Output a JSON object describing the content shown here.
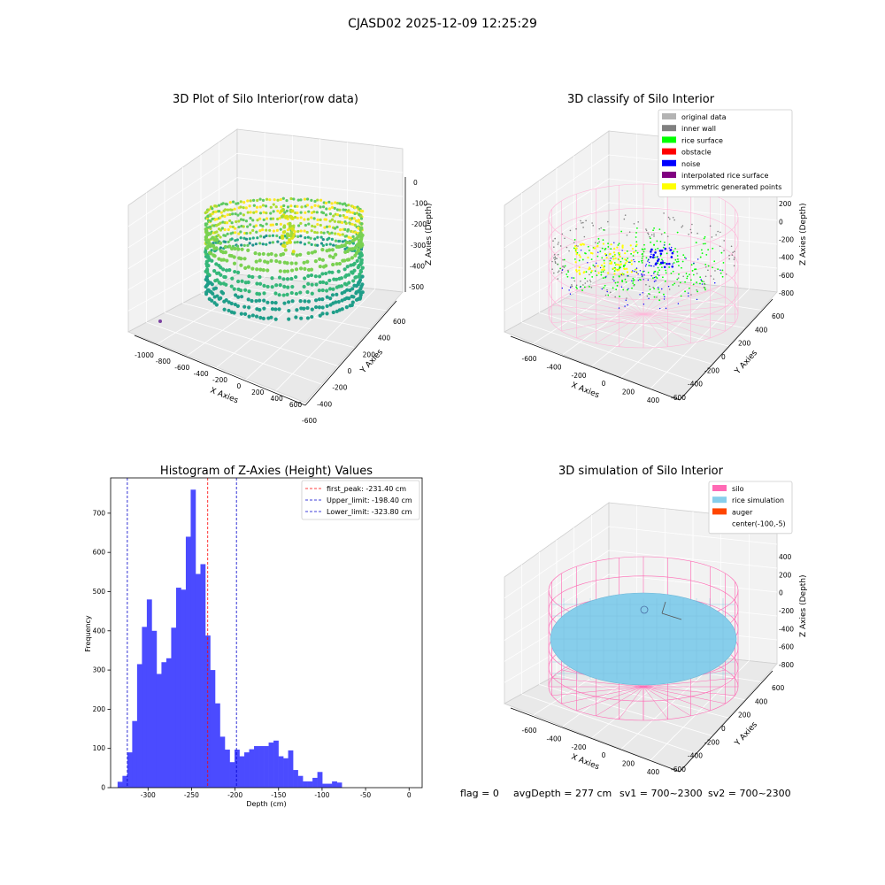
{
  "figure_title": "CJASD02 2025-12-09 12:25:29",
  "status_line": {
    "flag": "flag = 0",
    "avg_depth": "avgDepth = 277 cm",
    "sv1": "sv1 = 700~2300",
    "sv2": "sv2 = 700~2300"
  },
  "panels": {
    "raw": {
      "title": "3D Plot of Silo Interior(row data)",
      "xlabel": "X Axies",
      "ylabel": "Y Axies",
      "zlabel": "Z Axies (Depth)",
      "xticks": [
        "-1000",
        "-800",
        "-600",
        "-400",
        "-200",
        "0",
        "200",
        "400",
        "600"
      ],
      "yticks": [
        "600",
        "400",
        "200",
        "0",
        "-200",
        "-400",
        "-600"
      ],
      "zticks": [
        "0",
        "-100",
        "-200",
        "-300",
        "-400",
        "-500"
      ]
    },
    "classify": {
      "title": "3D classify of Silo Interior",
      "xlabel": "X Axies",
      "ylabel": "Y Axies",
      "zlabel": "Z Axies (Depth)",
      "xticks": [
        "-600",
        "-400",
        "-200",
        "0",
        "200",
        "400"
      ],
      "yticks": [
        "600",
        "400",
        "200",
        "0",
        "-200",
        "-400",
        "-600"
      ],
      "zticks": [
        "400",
        "200",
        "0",
        "-200",
        "-400",
        "-600",
        "-800"
      ],
      "legend": [
        {
          "label": "original data",
          "color": "#b3b3b3"
        },
        {
          "label": "inner wall",
          "color": "#808080"
        },
        {
          "label": "rice surface",
          "color": "#00ff00"
        },
        {
          "label": "obstacle",
          "color": "#ff0000"
        },
        {
          "label": "noise",
          "color": "#0000ff"
        },
        {
          "label": "interpolated rice surface",
          "color": "#800080"
        },
        {
          "label": "symmetric generated points",
          "color": "#ffff00"
        }
      ]
    },
    "simulation": {
      "title": "3D simulation of Silo Interior",
      "xlabel": "X Axies",
      "ylabel": "Y Axies",
      "zlabel": "Z Axies (Depth)",
      "xticks": [
        "-600",
        "-400",
        "-200",
        "0",
        "200",
        "400"
      ],
      "yticks": [
        "600",
        "400",
        "200",
        "0",
        "-200",
        "-400",
        "-600"
      ],
      "zticks": [
        "400",
        "200",
        "0",
        "-200",
        "-400",
        "-600",
        "-800"
      ],
      "legend": [
        {
          "label": "silo",
          "color": "#ff69b4"
        },
        {
          "label": "rice simulation",
          "color": "#87ceeb"
        },
        {
          "label": "auger",
          "color": "#ff4500"
        },
        {
          "label": "center(-100,-5)",
          "color": "none"
        }
      ]
    }
  },
  "chart_data": {
    "type": "bar",
    "title": "Histogram of Z-Axies (Height) Values",
    "xlabel": "Depth (cm)",
    "ylabel": "Frequency",
    "bar_color": "#4b4bff",
    "bin_width": 5.6,
    "bins_start": -335,
    "values": [
      15,
      30,
      90,
      170,
      315,
      410,
      480,
      400,
      290,
      320,
      330,
      408,
      510,
      505,
      640,
      760,
      545,
      570,
      388,
      300,
      215,
      130,
      97,
      65,
      97,
      80,
      90,
      98,
      106,
      106,
      106,
      115,
      120,
      80,
      75,
      95,
      45,
      30,
      16,
      16,
      25,
      40,
      10,
      10,
      16,
      13
    ],
    "xlim": [
      -343,
      15
    ],
    "ylim": [
      0,
      790
    ],
    "xticks": [
      -300,
      -250,
      -200,
      -150,
      -100,
      -50,
      0
    ],
    "yticks": [
      0,
      100,
      200,
      300,
      400,
      500,
      600,
      700
    ],
    "vlines": [
      {
        "label": "first_peak: -231.40 cm",
        "x": -231.4,
        "color": "#ff0000"
      },
      {
        "label": "Upper_limit: -198.40 cm",
        "x": -198.4,
        "color": "#0000cc"
      },
      {
        "label": "Lower_limit: -323.80 cm",
        "x": -323.8,
        "color": "#0000cc"
      }
    ],
    "legend_position": "top-right",
    "grid": false
  }
}
